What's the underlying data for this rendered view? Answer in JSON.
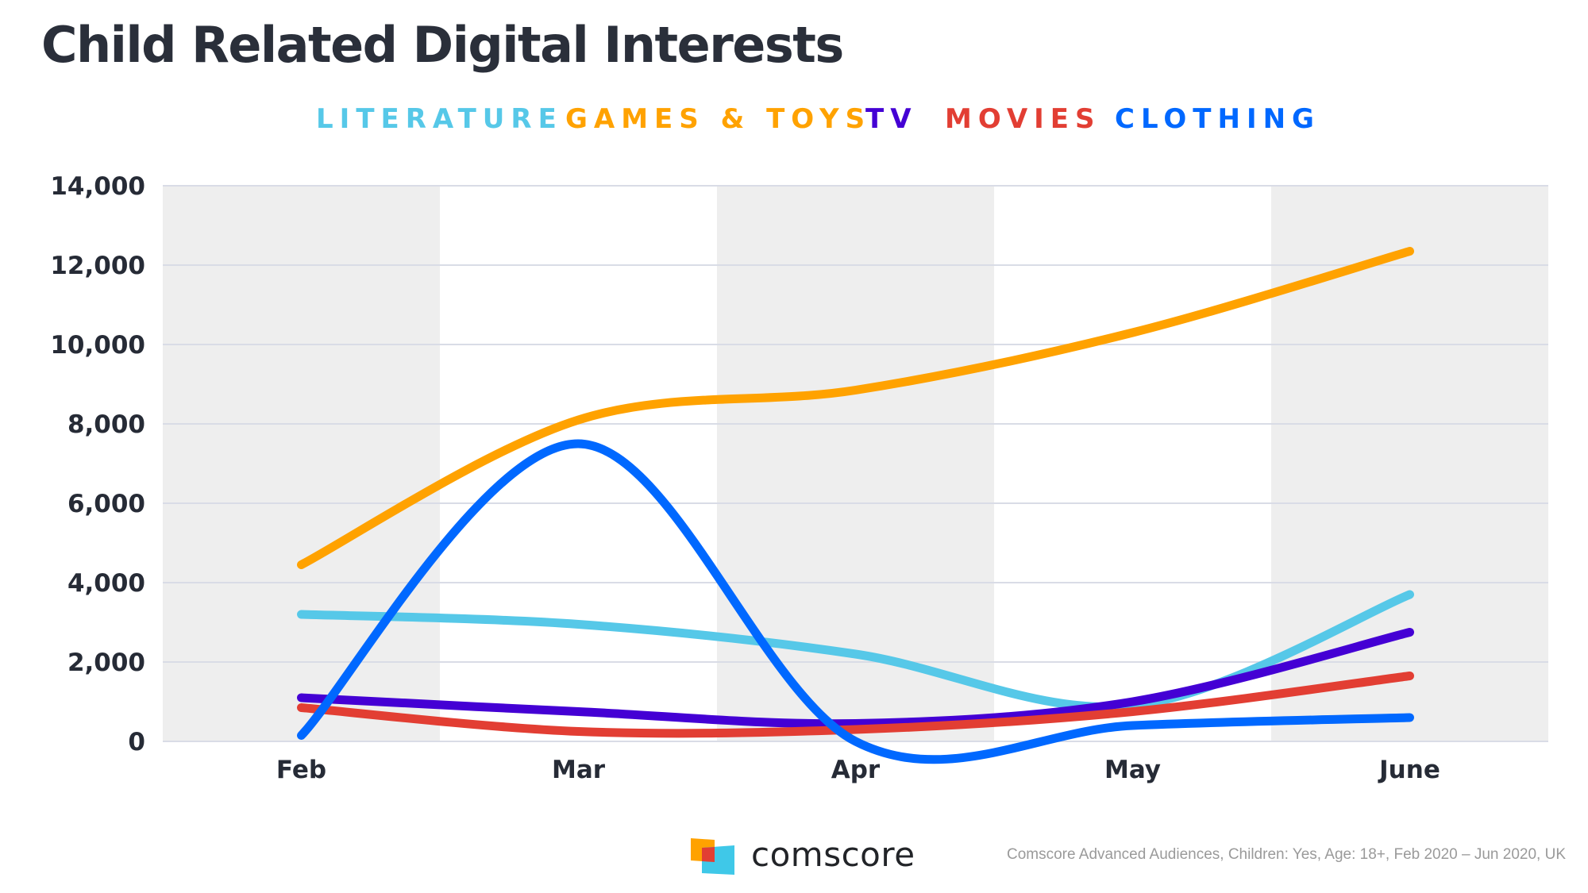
{
  "header": {
    "title": "Child Related Digital Interests"
  },
  "legend": [
    {
      "label": "LITERATURE",
      "color": "#56c8e8"
    },
    {
      "label": "GAMES & TOYS",
      "color": "#ffa200"
    },
    {
      "label": "TV",
      "color": "#4400d4"
    },
    {
      "label": "MOVIES",
      "color": "#e23e33"
    },
    {
      "label": "CLOTHING",
      "color": "#0068ff"
    }
  ],
  "chart_data": {
    "type": "line",
    "title": "Child Related Digital Interests",
    "xlabel": "",
    "ylabel": "",
    "categories": [
      "Feb",
      "Mar",
      "Apr",
      "May",
      "June"
    ],
    "ylim": [
      0,
      14000
    ],
    "yticks": [
      0,
      2000,
      4000,
      6000,
      8000,
      10000,
      12000,
      14000
    ],
    "ytick_labels": [
      "0",
      "2,000",
      "4,000",
      "6,000",
      "8,000",
      "10,000",
      "12,000",
      "14,000"
    ],
    "grid": true,
    "smooth": true,
    "legend_position": "top-center",
    "series": [
      {
        "name": "LITERATURE",
        "color": "#56c8e8",
        "values": [
          3200,
          2950,
          2200,
          900,
          3700
        ]
      },
      {
        "name": "GAMES & TOYS",
        "color": "#ffa200",
        "values": [
          4450,
          8100,
          8850,
          10300,
          12350
        ]
      },
      {
        "name": "TV",
        "color": "#4400d4",
        "values": [
          1100,
          750,
          450,
          1000,
          2750
        ]
      },
      {
        "name": "MOVIES",
        "color": "#e23e33",
        "values": [
          850,
          250,
          300,
          750,
          1650
        ]
      },
      {
        "name": "CLOTHING",
        "color": "#0068ff",
        "values": [
          150,
          7500,
          0,
          400,
          600
        ]
      }
    ]
  },
  "footer": {
    "brand": "comscore",
    "source": "Comscore Advanced Audiences, Children: Yes, Age: 18+, Feb 2020 – Jun 2020, UK",
    "logo_colors": {
      "orange": "#ffa200",
      "red": "#e23e33",
      "cyan": "#3fc8e8"
    }
  }
}
